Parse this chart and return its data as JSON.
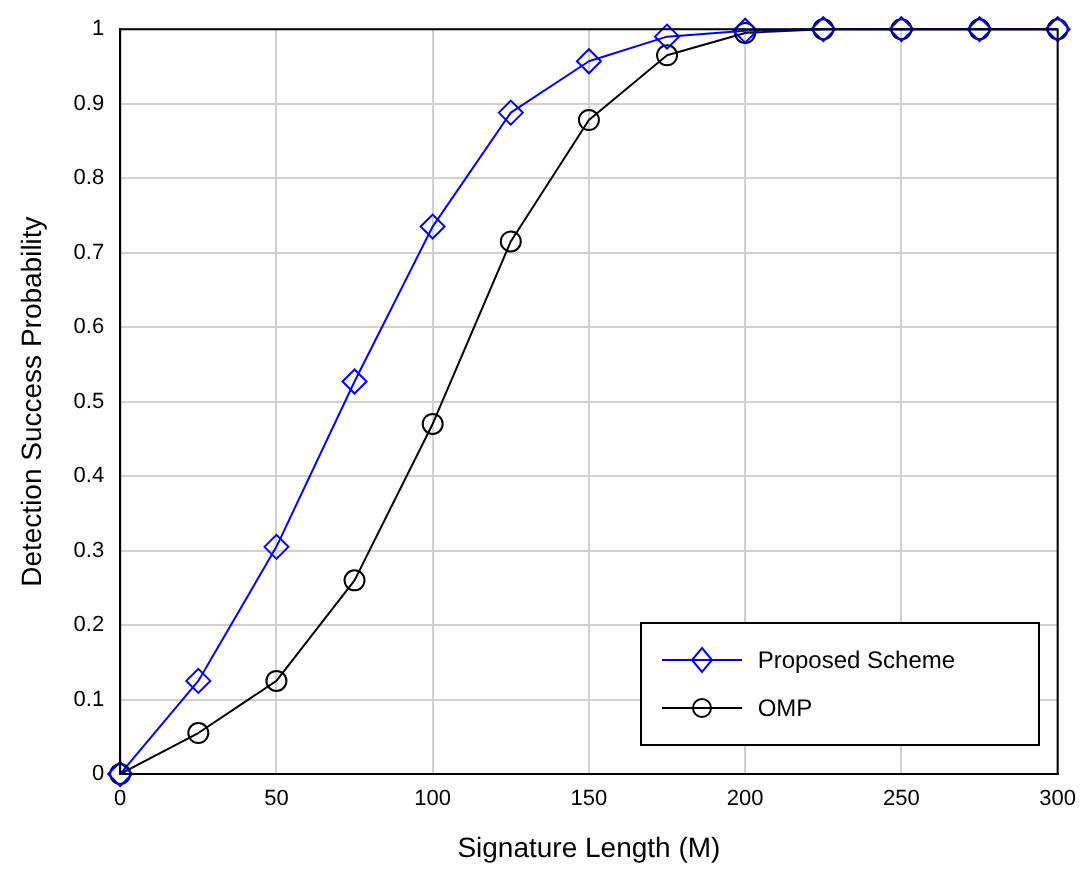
{
  "chart_data": {
    "type": "line",
    "xlabel": "Signature Length (M)",
    "ylabel": "Detection Success Probability",
    "x": [
      0,
      25,
      50,
      75,
      100,
      125,
      150,
      175,
      200,
      225,
      250,
      275,
      300
    ],
    "series": [
      {
        "name": "Proposed Scheme",
        "color": "#0000ff",
        "marker": "diamond",
        "values": [
          0,
          0.125,
          0.305,
          0.527,
          0.735,
          0.888,
          0.957,
          0.99,
          0.998,
          1,
          1,
          1,
          1
        ]
      },
      {
        "name": "OMP",
        "color": "#000000",
        "marker": "circle",
        "values": [
          0,
          0.055,
          0.125,
          0.26,
          0.47,
          0.715,
          0.878,
          0.965,
          0.995,
          1,
          1,
          1,
          1
        ]
      }
    ],
    "xlim": [
      0,
      300
    ],
    "xticks": [
      0,
      50,
      100,
      150,
      200,
      250,
      300
    ],
    "ylim": [
      0,
      1
    ],
    "yticks": [
      0,
      0.1,
      0.2,
      0.3,
      0.4,
      0.5,
      0.6,
      0.7,
      0.8,
      0.9,
      1
    ],
    "grid": true,
    "legend": "bottom right",
    "line_style": "solid"
  }
}
